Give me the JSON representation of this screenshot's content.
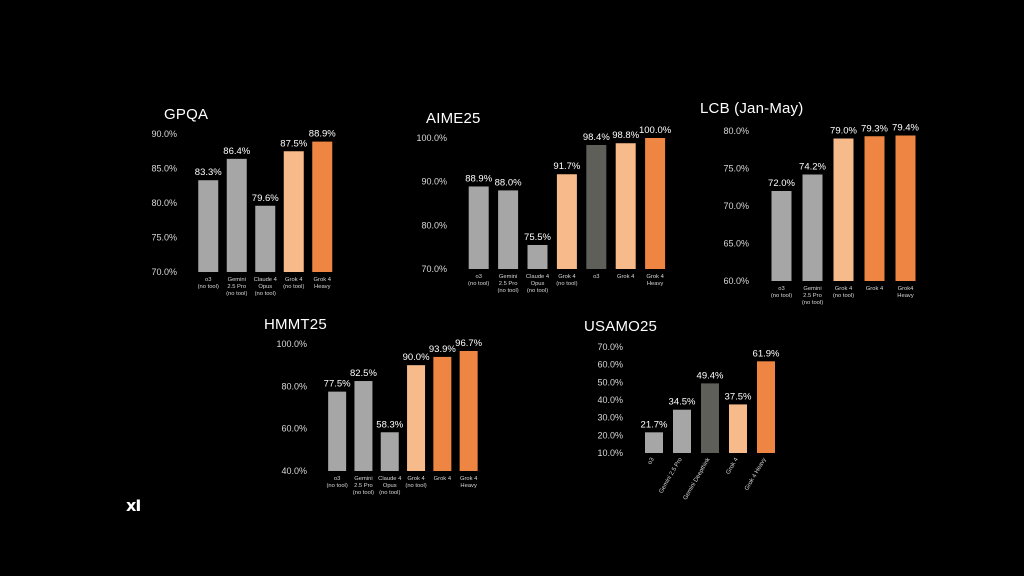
{
  "logo_text": "xI",
  "colors": {
    "gray": "#a6a6a6",
    "dark_gray": "#5f5f5a",
    "light_orange": "#f7bb8b",
    "orange": "#ee8542",
    "text": "#ffffff",
    "subtext": "#d8d8d8"
  },
  "chart_data": [
    {
      "type": "bar",
      "title": "GPQA",
      "ylim": [
        70,
        90
      ],
      "yticks": [
        "90.0%",
        "85.0%",
        "80.0%",
        "75.0%",
        "70.0%"
      ],
      "categories": [
        "o3\n(no tool)",
        "Gemini\n2.5 Pro\n(no tool)",
        "Claude 4\nOpus\n(no tool)",
        "Grok 4\n(no tool)",
        "Grok 4\nHeavy"
      ],
      "values": [
        83.3,
        86.4,
        79.6,
        87.5,
        88.9
      ],
      "labels": [
        "83.3%",
        "86.4%",
        "79.6%",
        "87.5%",
        "88.9%"
      ],
      "colors": [
        "gray",
        "gray",
        "gray",
        "light_orange",
        "orange"
      ]
    },
    {
      "type": "bar",
      "title": "AIME25",
      "ylim": [
        70,
        100
      ],
      "yticks": [
        "100.0%",
        "90.0%",
        "80.0%",
        "70.0%"
      ],
      "categories": [
        "o3\n(no tool)",
        "Gemini\n2.5 Pro\n(no tool)",
        "Claude 4\nOpus\n(no tool)",
        "Grok 4\n(no tool)",
        "o3",
        "Grok 4",
        "Grok 4\nHeavy"
      ],
      "values": [
        88.9,
        88.0,
        75.5,
        91.7,
        98.4,
        98.8,
        100.0
      ],
      "labels": [
        "88.9%",
        "88.0%",
        "75.5%",
        "91.7%",
        "98.4%",
        "98.8%",
        "100.0%"
      ],
      "colors": [
        "gray",
        "gray",
        "gray",
        "light_orange",
        "dark_gray",
        "light_orange",
        "orange"
      ]
    },
    {
      "type": "bar",
      "title": "LCB (Jan-May)",
      "ylim": [
        60,
        80
      ],
      "yticks": [
        "80.0%",
        "75.0%",
        "70.0%",
        "65.0%",
        "60.0%"
      ],
      "categories": [
        "o3\n(no tool)",
        "Gemini\n2.5 Pro\n(no tool)",
        "Grok 4\n(no tool)",
        "Grok 4",
        "Grok4\nHeavy"
      ],
      "values": [
        72.0,
        74.2,
        79.0,
        79.3,
        79.4
      ],
      "labels": [
        "72.0%",
        "74.2%",
        "79.0%",
        "79.3%",
        "79.4%"
      ],
      "colors": [
        "gray",
        "gray",
        "light_orange",
        "orange",
        "orange"
      ]
    },
    {
      "type": "bar",
      "title": "HMMT25",
      "ylim": [
        40,
        100
      ],
      "yticks": [
        "100.0%",
        "80.0%",
        "60.0%",
        "40.0%"
      ],
      "categories": [
        "o3\n(no tool)",
        "Gemini\n2.5 Pro\n(no tool)",
        "Claude 4\nOpus\n(no tool)",
        "Grok 4\n(no tool)",
        "Grok 4",
        "Grok 4\nHeavy"
      ],
      "values": [
        77.5,
        82.5,
        58.3,
        90.0,
        93.9,
        96.7
      ],
      "labels": [
        "77.5%",
        "82.5%",
        "58.3%",
        "90.0%",
        "93.9%",
        "96.7%"
      ],
      "colors": [
        "gray",
        "gray",
        "gray",
        "light_orange",
        "orange",
        "orange"
      ]
    },
    {
      "type": "bar",
      "title": "USAMO25",
      "ylim": [
        10,
        70
      ],
      "yticks": [
        "70.0%",
        "60.0%",
        "50.0%",
        "40.0%",
        "30.0%",
        "20.0%",
        "10.0%"
      ],
      "categories": [
        "o3",
        "Gemini 2.5 Pro",
        "Gemini Deepthink",
        "Grok 4",
        "Grok 4 Heavy"
      ],
      "rotate_categories": true,
      "values": [
        21.7,
        34.5,
        49.4,
        37.5,
        61.9
      ],
      "labels": [
        "21.7%",
        "34.5%",
        "49.4%",
        "37.5%",
        "61.9%"
      ],
      "colors": [
        "gray",
        "gray",
        "dark_gray",
        "light_orange",
        "orange"
      ]
    }
  ]
}
